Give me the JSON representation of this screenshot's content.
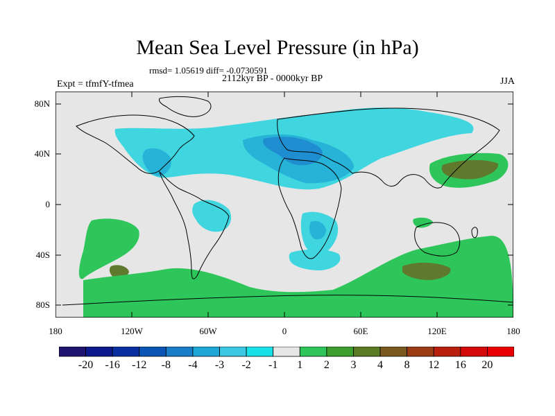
{
  "title": "Mean Sea Level Pressure (in hPa)",
  "stats_line": "rmsd= 1.05619 diff= -0.0730591",
  "experiment": "Expt = tfmfY-tfmea",
  "period": "2112kyr BP - 0000kyr BP",
  "season": "JJA",
  "lat_labels": [
    "80N",
    "40N",
    "0",
    "40S",
    "80S"
  ],
  "lon_labels": [
    "180",
    "120W",
    "60W",
    "0",
    "60E",
    "120E",
    "180"
  ],
  "colorbar": {
    "labels": [
      "-20",
      "-16",
      "-12",
      "-8",
      "-4",
      "-3",
      "-2",
      "-1",
      "1",
      "2",
      "3",
      "4",
      "8",
      "12",
      "16",
      "20"
    ],
    "colors": [
      "#1f1470",
      "#0d1a8c",
      "#0a2fa0",
      "#0b55b4",
      "#1a7dc8",
      "#1fa6d8",
      "#3cc8e2",
      "#18e2e8",
      "#e6e6e6",
      "#2ec65a",
      "#3c9e2c",
      "#5a7a24",
      "#7a5a1e",
      "#9a3c14",
      "#b81f0c",
      "#d40a0a",
      "#e80000"
    ]
  },
  "colors": {
    "background": "#e6e6e6",
    "neg_light": "#3fd6e0",
    "neg_mid": "#27b2d8",
    "neg_dark": "#1f8ed0",
    "pos_light": "#2ec65a",
    "pos_dark": "#5f7a2c"
  }
}
